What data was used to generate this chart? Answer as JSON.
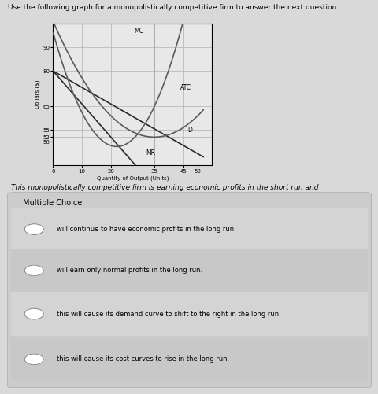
{
  "title": "Use the following graph for a monopolistically competitive firm to answer the next question.",
  "question_text": "This monopolistically competitive firm is earning economic profits in the short run and",
  "multiple_choice_label": "Multiple Choice",
  "choices": [
    "will continue to have economic profits in the long run.",
    "will earn only normal profits in the long run.",
    "this will cause its demand curve to shift to the right in the long run.",
    "this will cause its cost curves to rise in the long run."
  ],
  "xlabel": "Quantity of Output (Units)",
  "ylabel": "Dollars ($)",
  "xticks": [
    0,
    10,
    20,
    35,
    45,
    50
  ],
  "yticks": [
    50,
    52,
    55,
    65,
    80,
    90
  ],
  "xlim": [
    0,
    55
  ],
  "ylim": [
    40,
    100
  ],
  "bg_color": "#d9d9d9",
  "plot_bg_color": "#e8e8e8",
  "mc_color": "#5a5a5a",
  "atc_color": "#5a5a5a",
  "d_color": "#2a2a2a",
  "mr_color": "#2a2a2a",
  "grid_color": "#b0b0b0"
}
